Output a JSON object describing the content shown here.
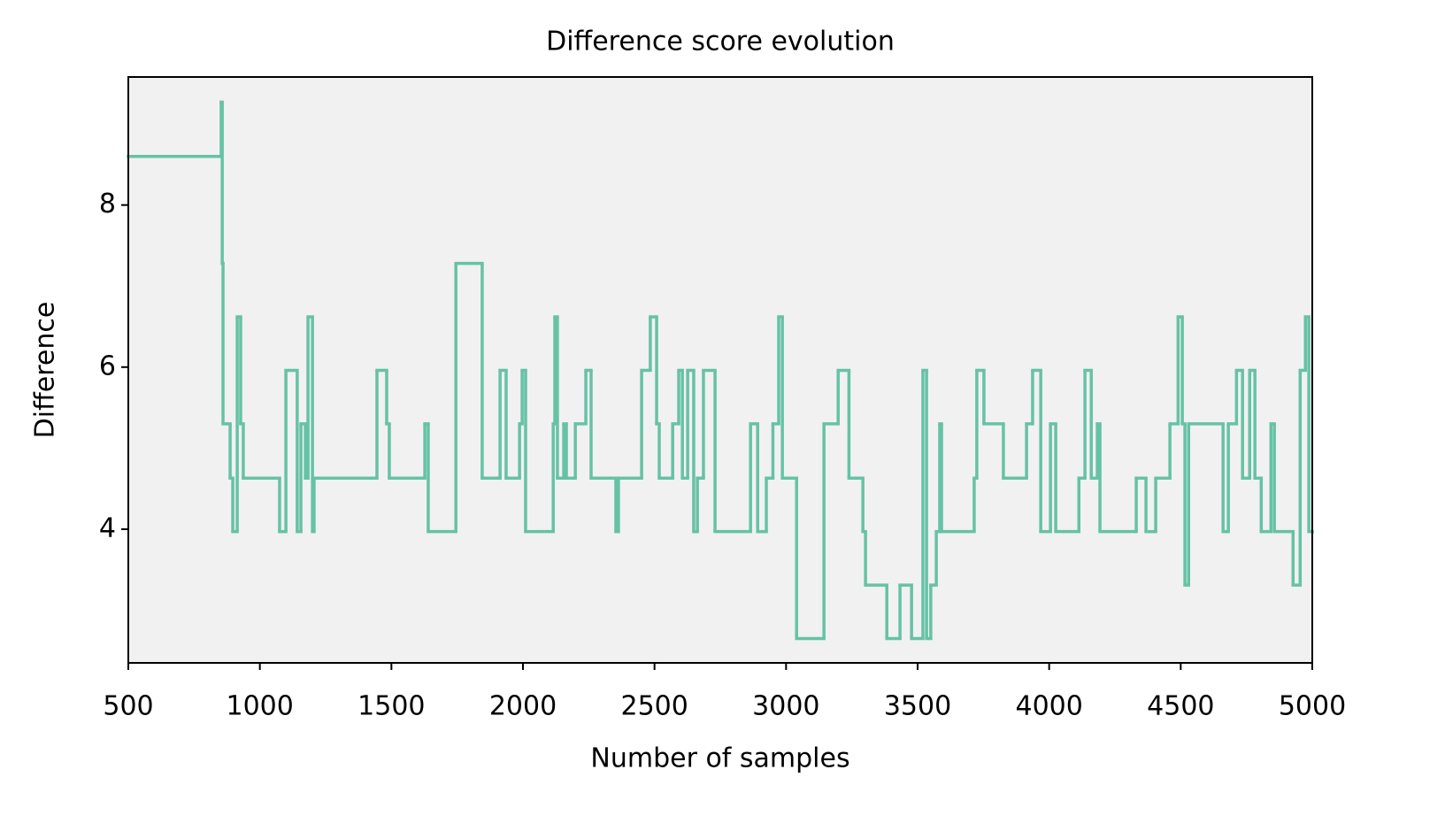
{
  "chart_data": {
    "type": "line",
    "drawstyle": "steps-post",
    "title": "Difference score evolution",
    "x_label": "Number of samples",
    "y_label": "Difference",
    "x": [
      500,
      853,
      857,
      860,
      887,
      897,
      914,
      927,
      937,
      1075,
      1099,
      1142,
      1156,
      1173,
      1183,
      1200,
      1206,
      1445,
      1482,
      1492,
      1627,
      1640,
      1745,
      1845,
      1913,
      1936,
      1987,
      1997,
      2010,
      2115,
      2121,
      2131,
      2155,
      2165,
      2199,
      2239,
      2259,
      2353,
      2363,
      2451,
      2484,
      2508,
      2518,
      2569,
      2592,
      2606,
      2626,
      2649,
      2663,
      2686,
      2730,
      2865,
      2892,
      2925,
      2950,
      2972,
      2986,
      3040,
      3144,
      3198,
      3239,
      3292,
      3302,
      3383,
      3433,
      3477,
      3520,
      3534,
      3550,
      3571,
      3584,
      3591,
      3715,
      3725,
      3752,
      3826,
      3914,
      3937,
      3968,
      4005,
      4025,
      4113,
      4136,
      4160,
      4183,
      4193,
      4331,
      4368,
      4405,
      4459,
      4490,
      4506,
      4516,
      4530,
      4661,
      4681,
      4712,
      4735,
      4762,
      4782,
      4806,
      4843,
      4856,
      4927,
      4954,
      4974,
      4987,
      5000
    ],
    "series": [
      {
        "name": "Difference",
        "color": "#66c2a5",
        "values": [
          8.6,
          9.27,
          7.28,
          5.3,
          4.63,
          3.97,
          6.62,
          5.3,
          4.63,
          3.97,
          5.96,
          3.97,
          5.3,
          4.63,
          6.62,
          3.97,
          4.63,
          5.96,
          5.3,
          4.63,
          5.3,
          3.97,
          7.28,
          4.63,
          5.96,
          4.63,
          5.3,
          5.96,
          3.97,
          5.3,
          6.62,
          4.63,
          5.3,
          4.63,
          5.3,
          5.96,
          4.63,
          3.97,
          4.63,
          5.96,
          6.62,
          5.3,
          4.63,
          5.3,
          5.96,
          4.63,
          5.96,
          3.97,
          4.63,
          5.96,
          3.97,
          5.3,
          3.97,
          4.63,
          5.3,
          6.62,
          4.63,
          2.65,
          5.3,
          5.96,
          4.63,
          3.97,
          3.31,
          2.65,
          3.31,
          2.65,
          5.96,
          2.65,
          3.31,
          3.97,
          5.3,
          3.97,
          4.63,
          5.96,
          5.3,
          4.63,
          5.3,
          5.96,
          3.97,
          5.3,
          3.97,
          4.63,
          5.96,
          4.63,
          5.3,
          3.97,
          4.63,
          3.97,
          4.63,
          5.3,
          6.62,
          5.3,
          3.31,
          5.3,
          3.97,
          5.3,
          5.96,
          4.63,
          5.96,
          4.63,
          3.97,
          5.3,
          3.97,
          3.31,
          5.96,
          6.62,
          3.97,
          3.97
        ]
      }
    ],
    "xlim": [
      500,
      5000
    ],
    "xticks": [
      500,
      1000,
      1500,
      2000,
      2500,
      3000,
      3500,
      4000,
      4500,
      5000
    ],
    "ylim": [
      2.35,
      9.58
    ],
    "yticks": [
      4,
      6,
      8
    ],
    "grid": false
  }
}
